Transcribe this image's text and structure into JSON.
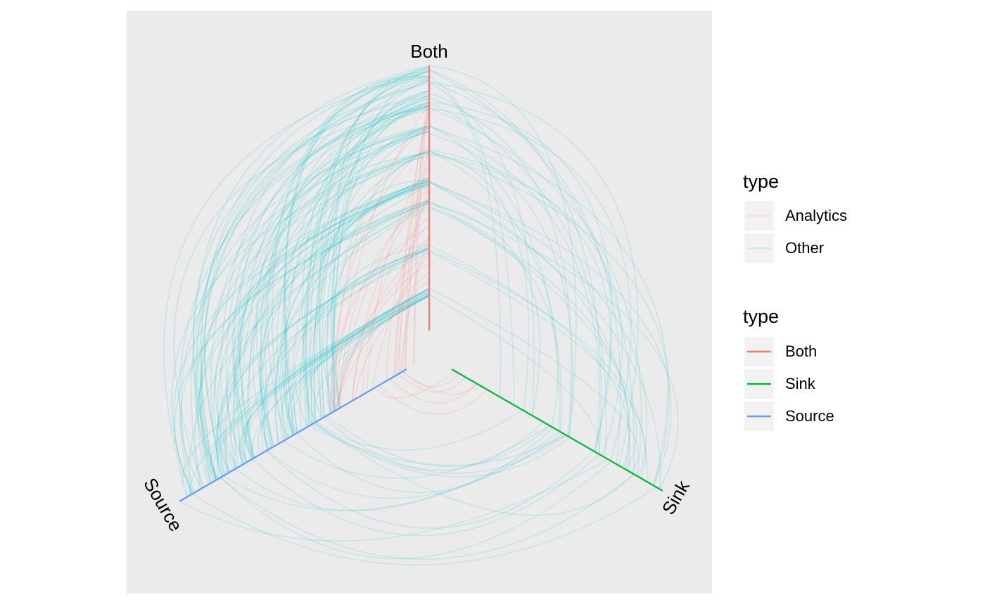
{
  "axes": [
    {
      "label": "Both",
      "color": "#F8766D"
    },
    {
      "label": "Sink",
      "color": "#00BA38"
    },
    {
      "label": "Source",
      "color": "#619CFF"
    }
  ],
  "legend_edges": {
    "title": "type",
    "items": [
      {
        "label": "Analytics",
        "color": "#F8766D"
      },
      {
        "label": "Other",
        "color": "#00BFC4"
      }
    ]
  },
  "legend_nodes": {
    "title": "type",
    "items": [
      {
        "label": "Both",
        "color": "#F8766D"
      },
      {
        "label": "Sink",
        "color": "#00BA38"
      },
      {
        "label": "Source",
        "color": "#619CFF"
      }
    ]
  },
  "colors": {
    "panel": "#EBEBEB",
    "legend_key": "#F2F2F2"
  }
}
